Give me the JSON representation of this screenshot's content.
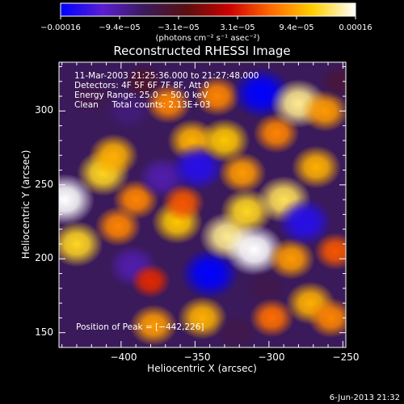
{
  "chart_data": {
    "type": "heatmap",
    "title": "Reconstructed RHESSI Image",
    "xlabel": "Heliocentric X (arcsec)",
    "ylabel": "Heliocentric Y (arcsec)",
    "xlim": [
      -442,
      -248
    ],
    "ylim": [
      140,
      333
    ],
    "xticks": [
      -400,
      -350,
      -300,
      -250
    ],
    "xtick_labels": [
      "−400",
      "−350",
      "−300",
      "−250"
    ],
    "yticks": [
      150,
      200,
      250,
      300
    ],
    "ytick_labels": [
      "150",
      "200",
      "250",
      "300"
    ],
    "colorbar": {
      "range": [
        -0.00016,
        0.00016
      ],
      "tick_labels": [
        "−0.00016",
        "−9.4e−05",
        "−3.1e−05",
        "3.1e−05",
        "9.4e−05",
        "0.00016"
      ],
      "unit_label": "(photons cm⁻² s⁻¹ asec⁻²)",
      "colormap": [
        "#0000ff",
        "#5a1fd0",
        "#3a1a5a",
        "#5a0f0f",
        "#cc0000",
        "#ff6a00",
        "#ffd000",
        "#ffffff"
      ]
    },
    "annotations": [
      "11-Mar-2003 21:25:36.000 to 21:27:48.000",
      "Detectors: 4F 5F 6F 7F 8F, Att 0",
      "Energy Range: 25.0 − 50.0 keV",
      "Clean     Total counts: 2.13E+03"
    ],
    "peak_label": "Position of Peak = [−442,226]",
    "blobs": [
      {
        "x": -438,
        "y": 240,
        "v": 0.00016
      },
      {
        "x": -430,
        "y": 210,
        "v": 0.00012
      },
      {
        "x": -420,
        "y": 310,
        "v": -6e-05
      },
      {
        "x": -412,
        "y": 258,
        "v": 0.00012
      },
      {
        "x": -405,
        "y": 270,
        "v": 0.0001
      },
      {
        "x": -402,
        "y": 222,
        "v": 8e-05
      },
      {
        "x": -395,
        "y": 300,
        "v": -8e-05
      },
      {
        "x": -392,
        "y": 195,
        "v": -0.0001
      },
      {
        "x": -390,
        "y": 240,
        "v": 8e-05
      },
      {
        "x": -385,
        "y": 320,
        "v": -4e-05
      },
      {
        "x": -380,
        "y": 185,
        "v": 4e-05
      },
      {
        "x": -378,
        "y": 155,
        "v": 9e-05
      },
      {
        "x": -372,
        "y": 255,
        "v": -0.0001
      },
      {
        "x": -368,
        "y": 305,
        "v": 8e-05
      },
      {
        "x": -362,
        "y": 225,
        "v": 0.00011
      },
      {
        "x": -358,
        "y": 238,
        "v": 6e-05
      },
      {
        "x": -352,
        "y": 280,
        "v": 0.0001
      },
      {
        "x": -348,
        "y": 262,
        "v": -0.00014
      },
      {
        "x": -345,
        "y": 160,
        "v": 0.0001
      },
      {
        "x": -340,
        "y": 190,
        "v": -0.00016
      },
      {
        "x": -335,
        "y": 310,
        "v": 8e-05
      },
      {
        "x": -330,
        "y": 280,
        "v": 0.00011
      },
      {
        "x": -328,
        "y": 215,
        "v": 0.00014
      },
      {
        "x": -322,
        "y": 150,
        "v": -6e-05
      },
      {
        "x": -318,
        "y": 258,
        "v": 9e-05
      },
      {
        "x": -315,
        "y": 232,
        "v": 0.00012
      },
      {
        "x": -310,
        "y": 206,
        "v": 0.00016
      },
      {
        "x": -305,
        "y": 312,
        "v": -0.00016
      },
      {
        "x": -302,
        "y": 180,
        "v": -6e-05
      },
      {
        "x": -298,
        "y": 160,
        "v": 7e-05
      },
      {
        "x": -295,
        "y": 285,
        "v": 8e-05
      },
      {
        "x": -290,
        "y": 240,
        "v": 0.00013
      },
      {
        "x": -285,
        "y": 200,
        "v": 9e-05
      },
      {
        "x": -280,
        "y": 305,
        "v": 0.00014
      },
      {
        "x": -276,
        "y": 225,
        "v": -0.00014
      },
      {
        "x": -272,
        "y": 170,
        "v": 0.0001
      },
      {
        "x": -268,
        "y": 262,
        "v": 0.0001
      },
      {
        "x": -262,
        "y": 300,
        "v": 9e-05
      },
      {
        "x": -258,
        "y": 160,
        "v": 8e-05
      },
      {
        "x": -255,
        "y": 205,
        "v": 6e-05
      },
      {
        "x": -252,
        "y": 320,
        "v": -5e-05
      }
    ]
  },
  "footer": {
    "date": "6-Jun-2013 21:32"
  }
}
